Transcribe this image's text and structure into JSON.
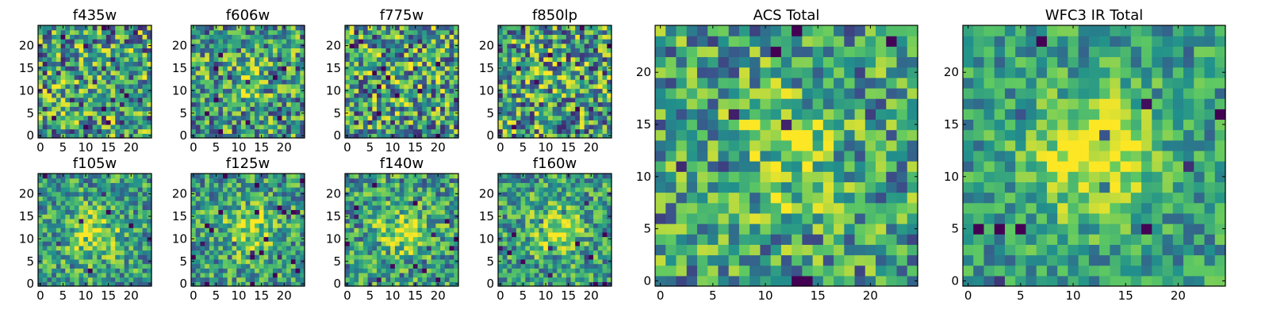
{
  "colormap": [
    "#440154",
    "#3b528b",
    "#21918c",
    "#5ec962",
    "#fde725"
  ],
  "chart_data": [
    {
      "type": "heatmap",
      "title": "f435w",
      "xticks": [
        "0",
        "5",
        "10",
        "15",
        "20"
      ],
      "yticks": [
        "0",
        "5",
        "10",
        "15",
        "20"
      ],
      "size": 25,
      "blob": [
        12,
        12,
        0.0
      ],
      "noise": 1.0,
      "seed": 11
    },
    {
      "type": "heatmap",
      "title": "f606w",
      "xticks": [
        "0",
        "5",
        "10",
        "15",
        "20"
      ],
      "yticks": [
        "0",
        "5",
        "10",
        "15",
        "20"
      ],
      "size": 25,
      "blob": [
        11,
        12,
        0.25
      ],
      "noise": 0.9,
      "seed": 23
    },
    {
      "type": "heatmap",
      "title": "f775w",
      "xticks": [
        "0",
        "5",
        "10",
        "15",
        "20"
      ],
      "yticks": [
        "0",
        "5",
        "10",
        "15",
        "20"
      ],
      "size": 25,
      "blob": [
        12,
        12,
        0.15
      ],
      "noise": 1.0,
      "seed": 37
    },
    {
      "type": "heatmap",
      "title": "f850lp",
      "xticks": [
        "0",
        "5",
        "10",
        "15",
        "20"
      ],
      "yticks": [
        "0",
        "5",
        "10",
        "15",
        "20"
      ],
      "size": 25,
      "blob": [
        12,
        12,
        0.1
      ],
      "noise": 1.0,
      "seed": 41
    },
    {
      "type": "heatmap",
      "title": "f105w",
      "xticks": [
        "0",
        "5",
        "10",
        "15",
        "20"
      ],
      "yticks": [
        "0",
        "5",
        "10",
        "15",
        "20"
      ],
      "size": 25,
      "blob": [
        12,
        11,
        0.6
      ],
      "noise": 0.7,
      "seed": 53
    },
    {
      "type": "heatmap",
      "title": "f125w",
      "xticks": [
        "0",
        "5",
        "10",
        "15",
        "20"
      ],
      "yticks": [
        "0",
        "5",
        "10",
        "15",
        "20"
      ],
      "size": 25,
      "blob": [
        12,
        12,
        0.55
      ],
      "noise": 0.7,
      "seed": 67
    },
    {
      "type": "heatmap",
      "title": "f140w",
      "xticks": [
        "0",
        "5",
        "10",
        "15",
        "20"
      ],
      "yticks": [
        "0",
        "5",
        "10",
        "15",
        "20"
      ],
      "size": 25,
      "blob": [
        12,
        12,
        0.5
      ],
      "noise": 0.75,
      "seed": 71
    },
    {
      "type": "heatmap",
      "title": "f160w",
      "xticks": [
        "0",
        "5",
        "10",
        "15",
        "20"
      ],
      "yticks": [
        "0",
        "5",
        "10",
        "15",
        "20"
      ],
      "size": 25,
      "blob": [
        12,
        12,
        0.55
      ],
      "noise": 0.7,
      "seed": 83
    },
    {
      "type": "heatmap",
      "title": "ACS Total",
      "xticks": [
        "0",
        "5",
        "10",
        "15",
        "20"
      ],
      "yticks": [
        "0",
        "5",
        "10",
        "15",
        "20"
      ],
      "size": 25,
      "blob": [
        12,
        12,
        0.45
      ],
      "noise": 0.8,
      "seed": 97
    },
    {
      "type": "heatmap",
      "title": "WFC3 IR Total",
      "xticks": [
        "0",
        "5",
        "10",
        "15",
        "20"
      ],
      "yticks": [
        "0",
        "5",
        "10",
        "15",
        "20"
      ],
      "size": 25,
      "blob": [
        12,
        12,
        0.85
      ],
      "noise": 0.55,
      "seed": 103
    }
  ]
}
